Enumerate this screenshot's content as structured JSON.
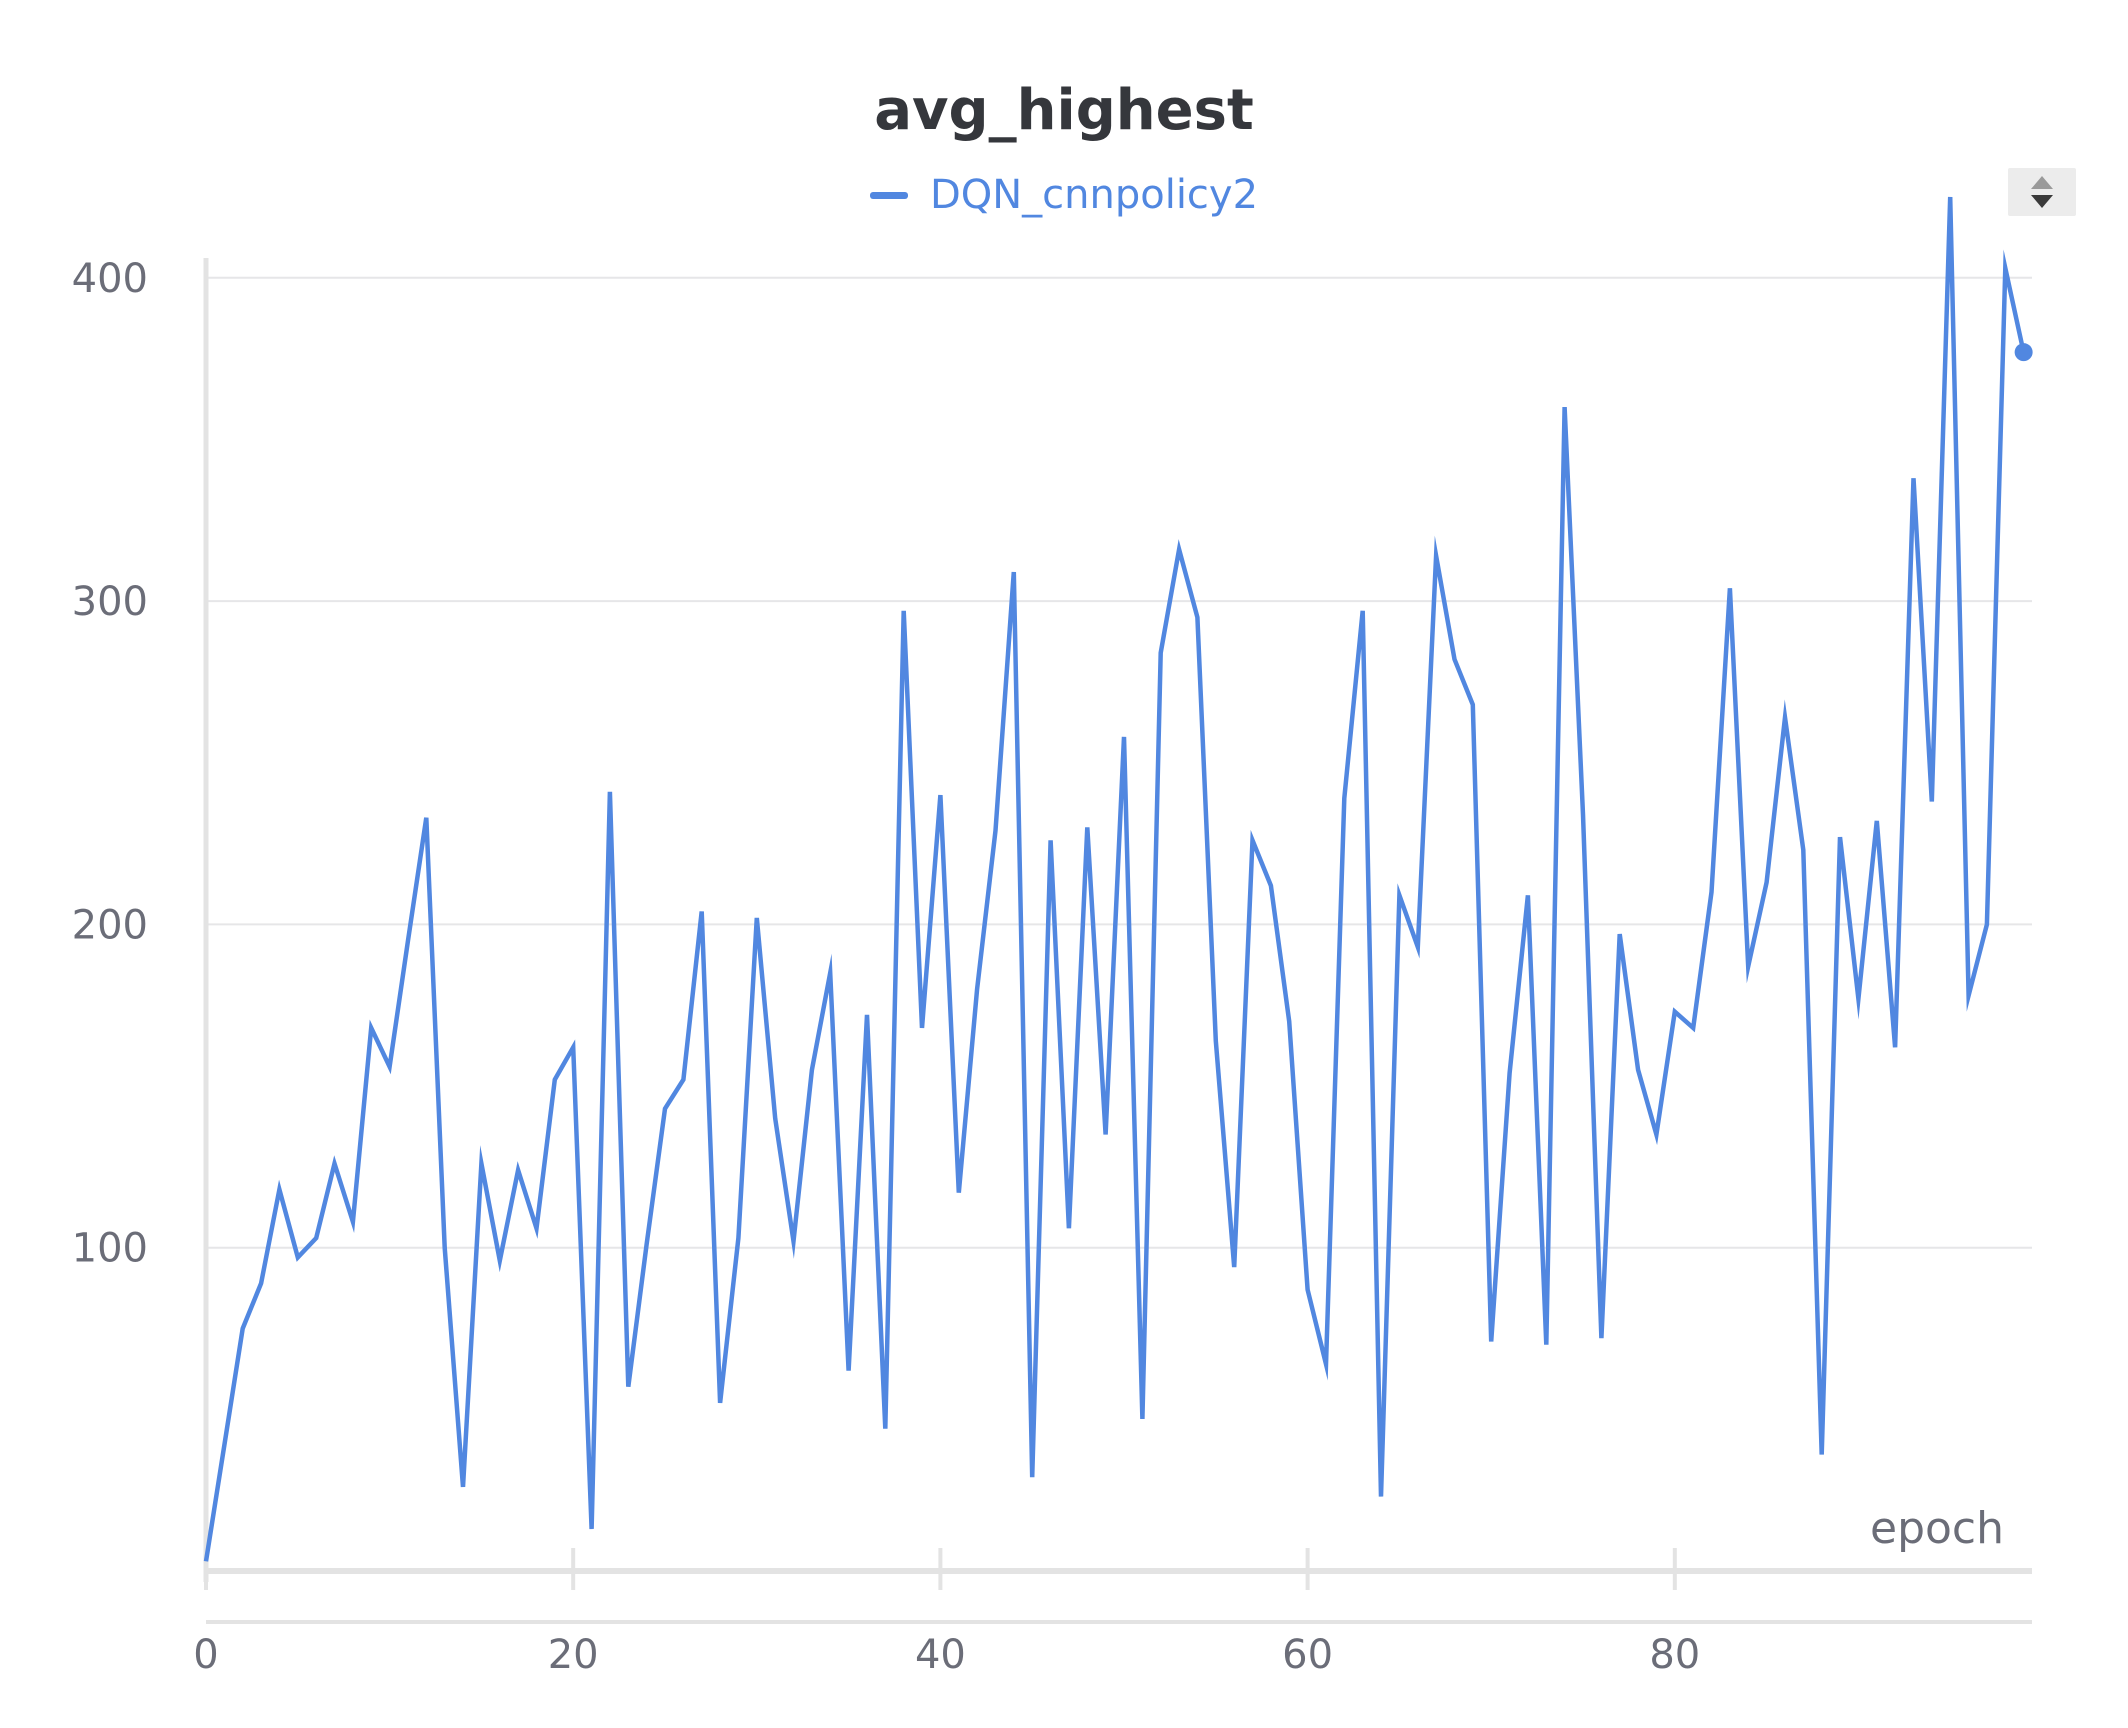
{
  "chart_data": {
    "type": "line",
    "title": "avg_highest",
    "xlabel": "epoch",
    "ylabel": "",
    "xlim": [
      0,
      99
    ],
    "ylim": [
      0,
      420
    ],
    "x_ticks": [
      0,
      20,
      40,
      60,
      80
    ],
    "y_ticks": [
      100,
      200,
      300,
      400
    ],
    "grid": true,
    "legend_position": "top",
    "series": [
      {
        "name": "DQN_cnnpolicy2",
        "color": "#5187e0",
        "x": [
          0,
          1,
          2,
          3,
          4,
          5,
          6,
          7,
          8,
          9,
          10,
          11,
          12,
          13,
          14,
          15,
          16,
          17,
          18,
          19,
          20,
          21,
          22,
          23,
          24,
          25,
          26,
          27,
          28,
          29,
          30,
          31,
          32,
          33,
          34,
          35,
          36,
          37,
          38,
          39,
          40,
          41,
          42,
          43,
          44,
          45,
          46,
          47,
          48,
          49,
          50,
          51,
          52,
          53,
          54,
          55,
          56,
          57,
          58,
          59,
          60,
          61,
          62,
          63,
          64,
          65,
          66,
          67,
          68,
          69,
          70,
          71,
          72,
          73,
          74,
          75,
          76,
          77,
          78,
          79,
          80,
          81,
          82,
          83,
          84,
          85,
          86,
          87,
          88,
          89,
          90,
          91,
          92,
          93,
          94,
          95,
          96,
          97,
          98,
          99
        ],
        "values": [
          3,
          39,
          75,
          89,
          118,
          97,
          103,
          126,
          108,
          168,
          156,
          195,
          233,
          100,
          26,
          126,
          96,
          124,
          106,
          152,
          162,
          13,
          241,
          57,
          101,
          143,
          152,
          204,
          52,
          103,
          202,
          140,
          102,
          155,
          185,
          62,
          172,
          44,
          297,
          168,
          240,
          117,
          180,
          229,
          309,
          29,
          226,
          106,
          230,
          135,
          258,
          47,
          284,
          316,
          295,
          164,
          94,
          226,
          212,
          170,
          87,
          64,
          239,
          297,
          23,
          209,
          193,
          314,
          282,
          268,
          71,
          154,
          209,
          70,
          360,
          234,
          72,
          197,
          155,
          135,
          173,
          168,
          210,
          304,
          187,
          213,
          264,
          223,
          36,
          227,
          177,
          232,
          162,
          338,
          238,
          425,
          178,
          200,
          403,
          377
        ]
      }
    ]
  }
}
